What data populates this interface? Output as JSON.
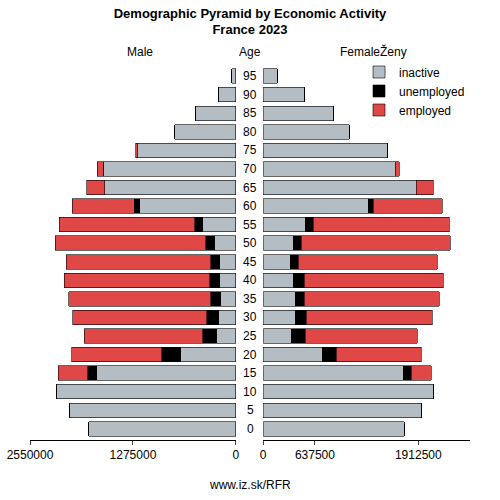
{
  "chart_data": {
    "type": "bar",
    "title": "Demographic Pyramid by Economic Activity",
    "subtitle": "France 2023",
    "axis_label": "Age",
    "source": "www.iz.sk/RFR",
    "orientation": "horizontal",
    "stacked": true,
    "grid": false,
    "legend": "upper right",
    "categories": [
      "0",
      "5",
      "10",
      "15",
      "20",
      "25",
      "30",
      "35",
      "40",
      "45",
      "50",
      "55",
      "60",
      "65",
      "70",
      "75",
      "80",
      "85",
      "90",
      "95"
    ],
    "panels": [
      {
        "label": "Male",
        "xlim": [
          2550000,
          0
        ],
        "xticks": [
          2550000,
          1275000,
          0
        ],
        "series": [
          {
            "name": "inactive",
            "color": "#b4bcc4",
            "values": [
              1820000,
              2055000,
              2216000,
              1721000,
              681000,
              235000,
              210000,
              186000,
              198000,
              198000,
              260000,
              408000,
              1188000,
              1622000,
              1646000,
              1213000,
              755000,
              495000,
              210000,
              50000
            ]
          },
          {
            "name": "unemployed",
            "color": "#000000",
            "values": [
              0,
              0,
              0,
              111000,
              235000,
              173000,
              149000,
              124000,
              124000,
              111000,
              111000,
              99000,
              74000,
              0,
              0,
              0,
              0,
              0,
              0,
              0
            ]
          },
          {
            "name": "employed",
            "color": "#e04848",
            "values": [
              0,
              0,
              0,
              371000,
              1114000,
              1473000,
              1659000,
              1758000,
              1807000,
              1795000,
              1869000,
              1683000,
              767000,
              223000,
              74000,
              25000,
              0,
              0,
              0,
              0
            ]
          }
        ]
      },
      {
        "label": "FemaleŽeny",
        "xlim": [
          0,
          2550000
        ],
        "xticks": [
          0,
          637500,
          1912500
        ],
        "series": [
          {
            "name": "inactive",
            "color": "#b4bcc4",
            "values": [
              1737000,
              1946000,
              2094000,
              1725000,
              727000,
              345000,
              394000,
              394000,
              370000,
              333000,
              370000,
              517000,
              1293000,
              1885000,
              1626000,
              1528000,
              1059000,
              862000,
              505000,
              172000
            ]
          },
          {
            "name": "unemployed",
            "color": "#000000",
            "values": [
              0,
              0,
              0,
              99000,
              172000,
              172000,
              136000,
              111000,
              136000,
              99000,
              99000,
              99000,
              62000,
              0,
              0,
              0,
              0,
              0,
              0,
              0
            ]
          },
          {
            "name": "employed",
            "color": "#e04848",
            "values": [
              0,
              0,
              0,
              246000,
              1047000,
              1380000,
              1552000,
              1663000,
              1712000,
              1712000,
              1836000,
              1675000,
              850000,
              209000,
              49000,
              0,
              0,
              0,
              0,
              0
            ]
          }
        ]
      }
    ]
  }
}
